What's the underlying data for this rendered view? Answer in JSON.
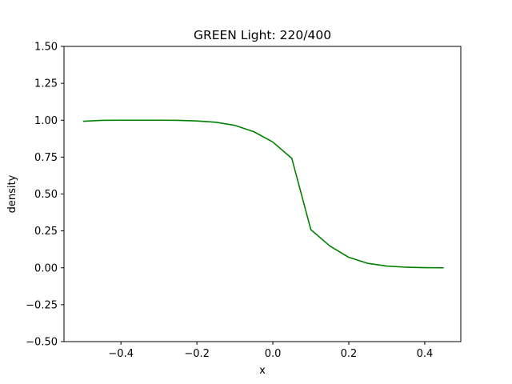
{
  "chart_data": {
    "type": "line",
    "title": "GREEN Light: 220/400",
    "xlabel": "x",
    "ylabel": "density",
    "xlim": [
      -0.55,
      0.495
    ],
    "ylim": [
      -0.5,
      1.5
    ],
    "xticks": [
      -0.4,
      -0.2,
      0.0,
      0.2,
      0.4
    ],
    "xtick_labels": [
      "−0.4",
      "−0.2",
      "0.0",
      "0.2",
      "0.4"
    ],
    "yticks": [
      -0.5,
      -0.25,
      0.0,
      0.25,
      0.5,
      0.75,
      1.0,
      1.25,
      1.5
    ],
    "ytick_labels": [
      "−0.50",
      "−0.25",
      "0.00",
      "0.25",
      "0.50",
      "0.75",
      "1.00",
      "1.25",
      "1.50"
    ],
    "grid": false,
    "series": [
      {
        "color": "#008000",
        "x": [
          -0.5,
          -0.45,
          -0.4,
          -0.35,
          -0.3,
          -0.25,
          -0.2,
          -0.15,
          -0.1,
          -0.05,
          0.0,
          0.05,
          0.1,
          0.15,
          0.2,
          0.25,
          0.3,
          0.35,
          0.4,
          0.45
        ],
        "y": [
          0.993,
          0.999,
          1.0,
          1.0,
          1.0,
          0.999,
          0.995,
          0.986,
          0.965,
          0.922,
          0.852,
          0.741,
          0.259,
          0.148,
          0.071,
          0.03,
          0.012,
          0.004,
          0.001,
          0.0
        ]
      }
    ]
  }
}
